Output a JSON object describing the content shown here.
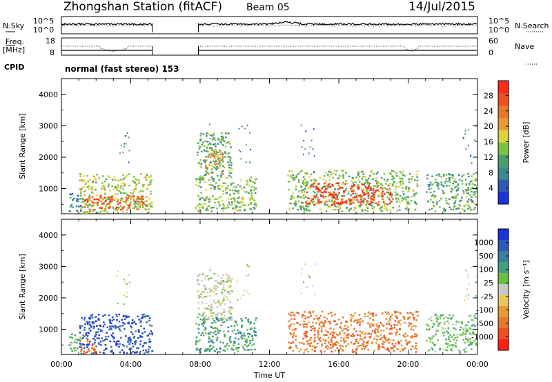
{
  "header": {
    "station": "Zhongshan Station (fitACF)",
    "beam": "Beam 05",
    "date": "14/Jul/2015"
  },
  "strip_nsky": {
    "label": "N.Sky",
    "left_ticks": [
      "10^5",
      "10^0"
    ],
    "right_ticks": [
      "10^5",
      "10^0"
    ],
    "right_label": "N.Search"
  },
  "strip_freq": {
    "label_line1": "Freq.",
    "label_line2": "[MHz]",
    "left_ticks": [
      "18",
      "8"
    ],
    "right_ticks": [
      "60",
      "0"
    ],
    "right_label": "Nave"
  },
  "strip_cpid": {
    "label": "CPID",
    "text": "normal (fast stereo)  153"
  },
  "colors": {
    "power_scale": [
      "#1e32dc",
      "#2c58b8",
      "#3a8a8a",
      "#4aa06a",
      "#7cc040",
      "#dcd23c",
      "#e69a32",
      "#e8782a",
      "#ee4e20",
      "#ff2a18"
    ],
    "velocity_scale": [
      "#1e32dc",
      "#2c58b8",
      "#3a7ea0",
      "#44a07c",
      "#66c040",
      "#c8c8c8",
      "#e8c85a",
      "#e89a34",
      "#e8782a",
      "#ee4e20",
      "#ff1e14"
    ],
    "gray_scatter": "#c8c8c8"
  },
  "chart_data": [
    {
      "type": "heatmap",
      "title": "",
      "xlabel": "Time UT",
      "ylabel": "Slant Range [km]",
      "xlim_hours": [
        0,
        24
      ],
      "xticks": [
        "00:00",
        "04:00",
        "08:00",
        "12:00",
        "16:00",
        "20:00",
        "00:00"
      ],
      "ylim": [
        200,
        4500
      ],
      "yticks": [
        "1000",
        "2000",
        "3000",
        "4000"
      ],
      "colorbar": {
        "label": "Power [dB]",
        "range": [
          0,
          31
        ],
        "ticks": [
          "4",
          "8",
          "12",
          "16",
          "20",
          "24",
          "28"
        ]
      },
      "echo_regions": [
        {
          "t_start": 0.4,
          "t_end": 1.2,
          "r_min": 300,
          "r_max": 900,
          "level": 6
        },
        {
          "t_start": 1.0,
          "t_end": 5.2,
          "r_min": 250,
          "r_max": 1500,
          "level": 14
        },
        {
          "t_start": 1.3,
          "t_end": 5.0,
          "r_min": 350,
          "r_max": 800,
          "level": 24
        },
        {
          "t_start": 7.8,
          "t_end": 9.8,
          "r_min": 1300,
          "r_max": 2800,
          "level": 10
        },
        {
          "t_start": 8.2,
          "t_end": 9.3,
          "r_min": 1500,
          "r_max": 2200,
          "level": 20
        },
        {
          "t_start": 7.7,
          "t_end": 11.2,
          "r_min": 300,
          "r_max": 1400,
          "level": 12
        },
        {
          "t_start": 13.0,
          "t_end": 20.5,
          "r_min": 300,
          "r_max": 1600,
          "level": 12
        },
        {
          "t_start": 14.0,
          "t_end": 19.0,
          "r_min": 500,
          "r_max": 1200,
          "level": 27
        },
        {
          "t_start": 21.0,
          "t_end": 24.0,
          "r_min": 300,
          "r_max": 1500,
          "level": 10
        }
      ]
    },
    {
      "type": "heatmap",
      "title": "",
      "xlabel": "Time UT",
      "ylabel": "Slant Range [km]",
      "xlim_hours": [
        0,
        24
      ],
      "xticks": [
        "00:00",
        "04:00",
        "08:00",
        "12:00",
        "16:00",
        "20:00",
        "00:00"
      ],
      "ylim": [
        200,
        4500
      ],
      "yticks": [
        "1000",
        "2000",
        "3000",
        "4000"
      ],
      "colorbar": {
        "label": "Velocity [m s⁻¹]",
        "range": [
          -1200,
          1200
        ],
        "ticks": [
          "1000",
          "500",
          "100",
          "25",
          "-25",
          "-100",
          "-500",
          "-1000"
        ]
      },
      "echo_regions": [
        {
          "t_start": 0.4,
          "t_end": 1.2,
          "r_min": 300,
          "r_max": 900,
          "class": 4
        },
        {
          "t_start": 1.0,
          "t_end": 5.2,
          "r_min": 250,
          "r_max": 1500,
          "class": 1
        },
        {
          "t_start": 1.0,
          "t_end": 2.0,
          "r_min": 250,
          "r_max": 700,
          "class": 8
        },
        {
          "t_start": 7.8,
          "t_end": 9.8,
          "r_min": 1300,
          "r_max": 2800,
          "class": 5
        },
        {
          "t_start": 7.7,
          "t_end": 11.2,
          "r_min": 300,
          "r_max": 1400,
          "class": 3
        },
        {
          "t_start": 13.0,
          "t_end": 20.5,
          "r_min": 300,
          "r_max": 1600,
          "class": 8
        },
        {
          "t_start": 21.0,
          "t_end": 24.0,
          "r_min": 300,
          "r_max": 1500,
          "class": 4
        }
      ]
    }
  ]
}
